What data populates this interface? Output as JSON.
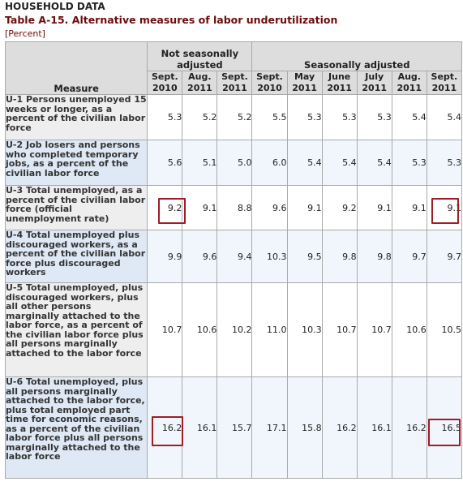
{
  "header": {
    "section": "HOUSEHOLD DATA",
    "title": "Table A-15. Alternative measures of labor underutilization",
    "unit": "[Percent]"
  },
  "table": {
    "measure_label": "Measure",
    "group_nsa": "Not seasonally adjusted",
    "group_sa": "Seasonally adjusted",
    "periods": [
      {
        "month": "Sept.",
        "year": "2010"
      },
      {
        "month": "Aug.",
        "year": "2011"
      },
      {
        "month": "Sept.",
        "year": "2011"
      },
      {
        "month": "Sept.",
        "year": "2010"
      },
      {
        "month": "May",
        "year": "2011"
      },
      {
        "month": "June",
        "year": "2011"
      },
      {
        "month": "July",
        "year": "2011"
      },
      {
        "month": "Aug.",
        "year": "2011"
      },
      {
        "month": "Sept.",
        "year": "2011"
      }
    ],
    "rows": [
      {
        "label": "U-1 Persons unemployed 15 weeks or longer, as a percent of the civilian labor force",
        "values": [
          "5.3",
          "5.2",
          "5.2",
          "5.5",
          "5.3",
          "5.3",
          "5.3",
          "5.4",
          "5.4"
        ]
      },
      {
        "label": "U-2 Job losers and persons who completed temporary jobs, as a percent of the civilian labor force",
        "values": [
          "5.6",
          "5.1",
          "5.0",
          "6.0",
          "5.4",
          "5.4",
          "5.4",
          "5.3",
          "5.3"
        ]
      },
      {
        "label": "U-3 Total unemployed, as a percent of the civilian labor force (official unemployment rate)",
        "values": [
          "9.2",
          "9.1",
          "8.8",
          "9.6",
          "9.1",
          "9.2",
          "9.1",
          "9.1",
          "9.1"
        ]
      },
      {
        "label": "U-4 Total unemployed plus discouraged workers, as a percent of the civilian labor force plus discouraged workers",
        "values": [
          "9.9",
          "9.6",
          "9.4",
          "10.3",
          "9.5",
          "9.8",
          "9.8",
          "9.7",
          "9.7"
        ]
      },
      {
        "label": "U-5 Total unemployed, plus discouraged workers, plus all other persons marginally attached to the labor force, as a percent of the civilian labor force plus all persons marginally attached to the labor force",
        "values": [
          "10.7",
          "10.6",
          "10.2",
          "11.0",
          "10.3",
          "10.7",
          "10.7",
          "10.6",
          "10.5"
        ]
      },
      {
        "label": "U-6 Total unemployed, plus all persons marginally attached to the labor force, plus total employed part time for economic reasons, as a percent of the civilian labor force plus all persons marginally attached to the labor force",
        "values": [
          "16.2",
          "16.1",
          "15.7",
          "17.1",
          "15.8",
          "16.2",
          "16.1",
          "16.2",
          "16.5"
        ]
      }
    ]
  },
  "colors": {
    "title": "#6b0c0c",
    "highlight": "#a01c26",
    "alt_row": "#dfe8f5",
    "header_bg": "#dddddd"
  }
}
